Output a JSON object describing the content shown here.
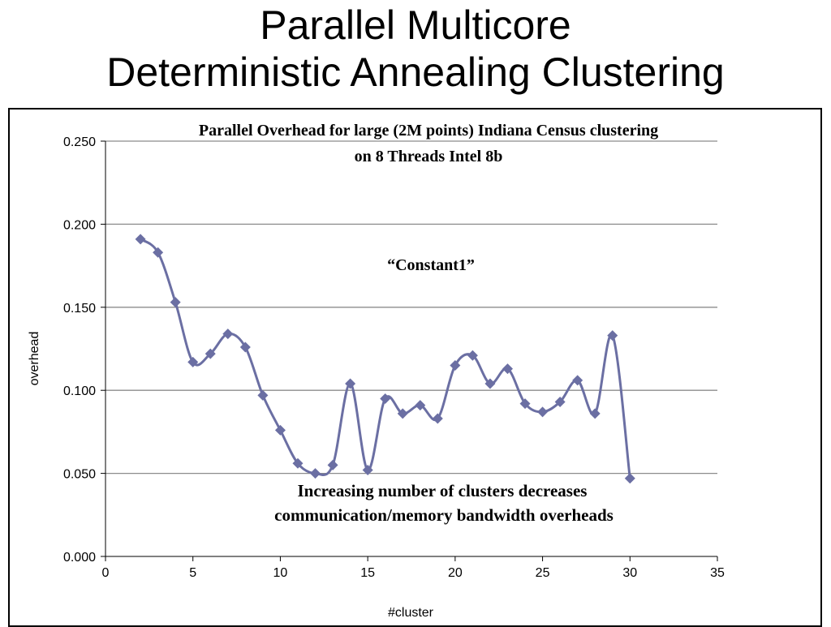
{
  "slide": {
    "title_line1": "Parallel Multicore",
    "title_line2": "Deterministic Annealing Clustering"
  },
  "colors": {
    "series": "#6b6fa3",
    "grid": "#8c8c8c",
    "axis": "#000000"
  },
  "chart_data": {
    "type": "line",
    "title": "Parallel Overhead for large (2M points) Indiana Census clustering on 8 Threads Intel 8b",
    "title_line1": "Parallel Overhead for large (2M points) Indiana Census clustering",
    "title_line2": "on 8 Threads Intel 8b",
    "xlabel": "#cluster",
    "ylabel": "overhead",
    "xlim": [
      0,
      35
    ],
    "ylim": [
      0,
      0.25
    ],
    "xticks": [
      0,
      5,
      10,
      15,
      20,
      25,
      30,
      35
    ],
    "xtick_labels": [
      "0",
      "5",
      "10",
      "15",
      "20",
      "25",
      "30",
      "35"
    ],
    "yticks": [
      0,
      0.05,
      0.1,
      0.15,
      0.2,
      0.25
    ],
    "ytick_labels": [
      "0.000",
      "0.050",
      "0.100",
      "0.150",
      "0.200",
      "0.250"
    ],
    "grid": "horizontal",
    "marker": "diamond",
    "smoothed": true,
    "series": [
      {
        "x": [
          2,
          3,
          4,
          5,
          6,
          7,
          8,
          9,
          10,
          11,
          12,
          13,
          14,
          15,
          16,
          17,
          18,
          19,
          20,
          21,
          22,
          23,
          24,
          25,
          26,
          27,
          28,
          29,
          30
        ],
        "values": [
          0.191,
          0.183,
          0.153,
          0.117,
          0.122,
          0.134,
          0.126,
          0.097,
          0.076,
          0.056,
          0.05,
          0.055,
          0.104,
          0.052,
          0.095,
          0.086,
          0.091,
          0.083,
          0.115,
          0.121,
          0.104,
          0.113,
          0.092,
          0.087,
          0.093,
          0.106,
          0.086,
          0.133,
          0.047
        ]
      }
    ],
    "annotations": [
      {
        "text": "“Constant1”"
      },
      {
        "text_line1": "Increasing number of clusters decreases",
        "text_line2": "communication/memory bandwidth overheads"
      }
    ]
  }
}
